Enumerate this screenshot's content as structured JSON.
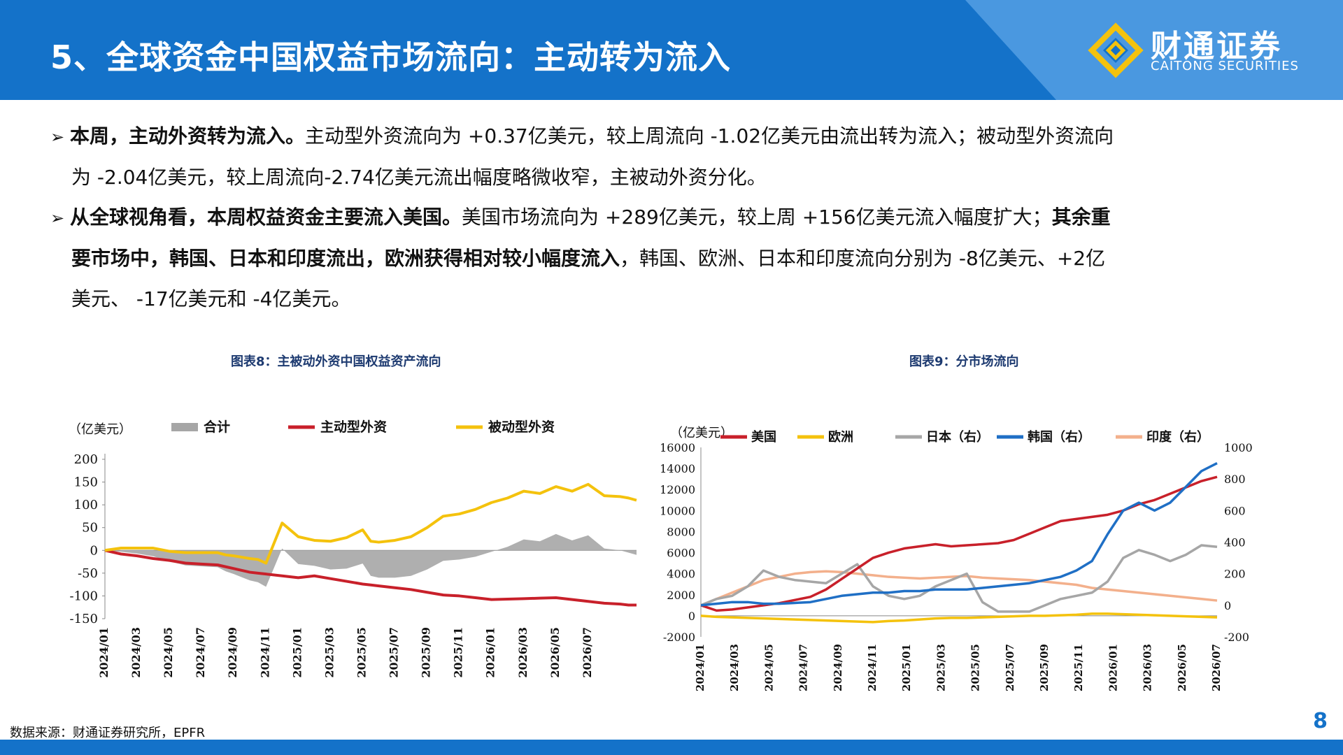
{
  "header": {
    "title": "5、全球资金中国权益市场流向：主动转为流入",
    "logo_brand": "财通证券",
    "logo_sub": "CAITONG SECURITIES"
  },
  "paragraphs": [
    {
      "lines": [
        {
          "parts": [
            {
              "text": "本周，主动外资转为流入。",
              "bold": true
            },
            {
              "text": "主动型外资流向为 +0.37亿美元，较上周流向 -1.02亿美元由流出转为流入；被动型外资流向",
              "bold": false
            }
          ]
        },
        {
          "parts": [
            {
              "text": "为 -2.04亿美元，较上周流向-2.74亿美元流出幅度略微收窄，主被动外资分化。",
              "bold": false
            }
          ]
        }
      ]
    },
    {
      "lines": [
        {
          "parts": [
            {
              "text": "从全球视角看，本周权益资金主要流入美国。",
              "bold": true
            },
            {
              "text": "美国市场流向为 +289亿美元，较上周 +156亿美元流入幅度扩大；",
              "bold": false
            },
            {
              "text": "其余重",
              "bold": true
            }
          ]
        },
        {
          "parts": [
            {
              "text": "要市场中，韩国、日本和印度流出，欧洲获得相对较小幅度流入",
              "bold": true
            },
            {
              "text": "，韩国、欧洲、日本和印度流向分别为 -8亿美元、+2亿",
              "bold": false
            }
          ]
        },
        {
          "parts": [
            {
              "text": "美元、 -17亿美元和 -4亿美元。",
              "bold": false
            }
          ]
        }
      ]
    }
  ],
  "chart_titles": {
    "left": "图表8：主被动外资中国权益资产流向",
    "right": "图表9：分市场流向"
  },
  "source": "数据来源：财通证券研究所，EPFR",
  "page_number": "8",
  "colors": {
    "header_blue": "#1472c9",
    "red": "#c8202a",
    "yellow": "#f4c20d",
    "gray": "#a6a6a6",
    "blue": "#1f6fc5",
    "orange": "#f3b08c"
  },
  "chart_data": [
    {
      "type": "line",
      "unit_label": "（亿美元）",
      "ylim": [
        -150,
        200
      ],
      "yticks": [
        200,
        150,
        100,
        50,
        0,
        -50,
        -100,
        -150
      ],
      "xticks": [
        "2024/01",
        "2024/03",
        "2024/05",
        "2024/07",
        "2024/09",
        "2024/11",
        "2025/01",
        "2025/03",
        "2025/05",
        "2025/07",
        "2025/09",
        "2025/11",
        "2026/01",
        "2026/03",
        "2026/05",
        "2026/07"
      ],
      "legend": [
        "合计",
        "主动型外资",
        "被动型外资"
      ],
      "x": [
        0,
        1,
        2,
        3,
        4,
        5,
        6,
        7,
        7.5,
        8,
        8.5,
        9,
        9.5,
        10,
        11,
        12,
        13,
        14,
        15,
        16,
        16.5,
        17,
        18,
        19,
        20,
        21,
        22,
        23,
        24,
        25,
        26,
        27,
        28,
        29,
        30,
        31,
        32,
        32.5,
        33
      ],
      "series": [
        {
          "name": "主动型外资",
          "color": "red",
          "values": [
            0,
            -8,
            -12,
            -18,
            -22,
            -28,
            -30,
            -32,
            -36,
            -40,
            -44,
            -48,
            -50,
            -52,
            -56,
            -60,
            -56,
            -62,
            -68,
            -74,
            -76,
            -78,
            -82,
            -86,
            -92,
            -98,
            -100,
            -104,
            -108,
            -107,
            -106,
            -105,
            -104,
            -108,
            -112,
            -116,
            -118,
            -120,
            -120
          ]
        },
        {
          "name": "被动型外资",
          "color": "yellow",
          "values": [
            0,
            5,
            5,
            5,
            -2,
            -5,
            -5,
            -5,
            -10,
            -12,
            -15,
            -18,
            -20,
            -28,
            60,
            30,
            22,
            20,
            28,
            45,
            20,
            18,
            22,
            30,
            50,
            75,
            80,
            90,
            105,
            115,
            130,
            125,
            140,
            130,
            145,
            120,
            118,
            115,
            110
          ]
        },
        {
          "name": "合计",
          "color": "gray",
          "values": [
            0,
            -3,
            -7,
            -13,
            -24,
            -33,
            -35,
            -37,
            -46,
            -52,
            -59,
            -66,
            -70,
            -80,
            4,
            -30,
            -34,
            -42,
            -40,
            -29,
            -56,
            -60,
            -60,
            -56,
            -42,
            -23,
            -20,
            -14,
            -3,
            8,
            24,
            20,
            36,
            22,
            33,
            4,
            0,
            -5,
            -10
          ]
        }
      ]
    },
    {
      "type": "line",
      "unit_label": "（亿美元）",
      "ylim_left": [
        -2000,
        16000
      ],
      "ylim_right": [
        -200,
        1000
      ],
      "yticks_left": [
        16000,
        14000,
        12000,
        10000,
        8000,
        6000,
        4000,
        2000,
        0,
        -2000
      ],
      "yticks_right": [
        1000,
        800,
        600,
        400,
        200,
        0,
        -200
      ],
      "xticks": [
        "2024/01",
        "2024/03",
        "2024/05",
        "2024/07",
        "2024/09",
        "2024/11",
        "2025/01",
        "2025/03",
        "2025/05",
        "2025/07",
        "2025/09",
        "2025/11",
        "2026/01",
        "2026/03",
        "2026/05",
        "2026/07"
      ],
      "legend": [
        "美国",
        "欧洲",
        "日本（右）",
        "韩国（右）",
        "印度（右）"
      ],
      "x": [
        0,
        1,
        2,
        3,
        4,
        5,
        6,
        7,
        8,
        9,
        10,
        11,
        12,
        13,
        14,
        15,
        16,
        17,
        18,
        19,
        20,
        21,
        22,
        23,
        24,
        25,
        26,
        27,
        28,
        29,
        30,
        31,
        32,
        33
      ],
      "series": [
        {
          "name": "美国",
          "axis": "left",
          "color": "red",
          "values": [
            1000,
            500,
            600,
            800,
            1000,
            1200,
            1500,
            1800,
            2500,
            3500,
            4500,
            5500,
            6000,
            6400,
            6600,
            6800,
            6600,
            6700,
            6800,
            6900,
            7200,
            7800,
            8400,
            9000,
            9200,
            9400,
            9600,
            10000,
            10600,
            11000,
            11600,
            12200,
            12800,
            13200
          ]
        },
        {
          "name": "欧洲",
          "axis": "left",
          "color": "yellow",
          "values": [
            0,
            -100,
            -150,
            -200,
            -250,
            -300,
            -350,
            -400,
            -450,
            -500,
            -550,
            -600,
            -500,
            -450,
            -350,
            -250,
            -200,
            -200,
            -150,
            -100,
            -50,
            0,
            0,
            50,
            100,
            200,
            200,
            150,
            100,
            50,
            0,
            -50,
            -100,
            -150
          ]
        },
        {
          "name": "日本（右）",
          "axis": "right",
          "color": "gray",
          "values": [
            0,
            40,
            60,
            120,
            220,
            180,
            160,
            150,
            140,
            200,
            260,
            120,
            60,
            40,
            60,
            120,
            160,
            200,
            20,
            -40,
            -40,
            -40,
            0,
            40,
            60,
            80,
            150,
            300,
            350,
            320,
            280,
            320,
            380,
            370
          ]
        },
        {
          "name": "韩国（右）",
          "axis": "right",
          "color": "blue",
          "values": [
            0,
            10,
            20,
            20,
            10,
            10,
            15,
            20,
            40,
            60,
            70,
            80,
            80,
            90,
            90,
            100,
            100,
            100,
            110,
            120,
            130,
            140,
            160,
            180,
            220,
            280,
            450,
            600,
            650,
            600,
            650,
            750,
            850,
            900
          ]
        },
        {
          "name": "印度（右）",
          "axis": "right",
          "color": "orange",
          "values": [
            0,
            40,
            80,
            120,
            160,
            180,
            200,
            210,
            215,
            210,
            200,
            190,
            180,
            175,
            170,
            175,
            180,
            185,
            175,
            170,
            165,
            160,
            150,
            140,
            130,
            110,
            100,
            90,
            80,
            70,
            60,
            50,
            40,
            30
          ]
        }
      ]
    }
  ]
}
